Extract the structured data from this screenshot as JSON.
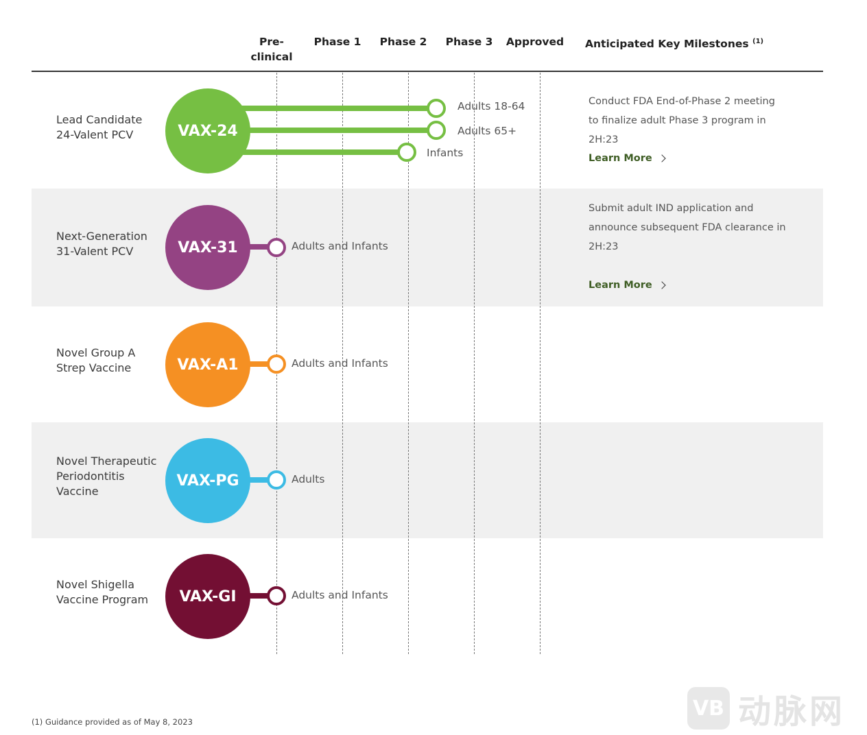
{
  "header": {
    "preclinical": "Pre-\nclinical",
    "phase1": "Phase 1",
    "phase2": "Phase 2",
    "phase3": "Phase 3",
    "approved": "Approved",
    "milestones": "Anticipated Key Milestones",
    "milestones_note": "(1)"
  },
  "programs": [
    {
      "name": "Lead Candidate\n24-Valent PCV",
      "code": "VAX-24",
      "color": "#76bf43",
      "segments": [
        {
          "label": "Adults 18-64",
          "stage": "Phase 2"
        },
        {
          "label": "Adults 65+",
          "stage": "Phase 2"
        },
        {
          "label": "Infants",
          "stage": "Phase 1"
        }
      ],
      "milestone": "Conduct FDA End-of-Phase 2 meeting to finalize adult Phase 3 program in 2H:23",
      "learn_more": "Learn More"
    },
    {
      "name": "Next-Generation\n31-Valent PCV",
      "code": "VAX-31",
      "color": "#944383",
      "segments": [
        {
          "label": "Adults and Infants",
          "stage": "Pre-clinical"
        }
      ],
      "milestone": "Submit adult IND application and announce subsequent FDA clearance in 2H:23",
      "learn_more": "Learn More"
    },
    {
      "name": "Novel Group A\nStrep Vaccine",
      "code": "VAX-A1",
      "color": "#f59023",
      "segments": [
        {
          "label": "Adults and Infants",
          "stage": "Pre-clinical"
        }
      ],
      "milestone": "",
      "learn_more": ""
    },
    {
      "name": "Novel Therapeutic\nPeriodontitis\nVaccine",
      "code": "VAX-PG",
      "color": "#3cbbe4",
      "segments": [
        {
          "label": "Adults",
          "stage": "Pre-clinical"
        }
      ],
      "milestone": "",
      "learn_more": ""
    },
    {
      "name": "Novel Shigella\nVaccine Program",
      "code": "VAX-GI",
      "color": "#730f33",
      "segments": [
        {
          "label": "Adults and Infants",
          "stage": "Pre-clinical"
        }
      ],
      "milestone": "",
      "learn_more": ""
    }
  ],
  "footnote": "(1) Guidance provided as of May 8, 2023",
  "watermark": {
    "logo": "VB",
    "text": "动脉网"
  }
}
